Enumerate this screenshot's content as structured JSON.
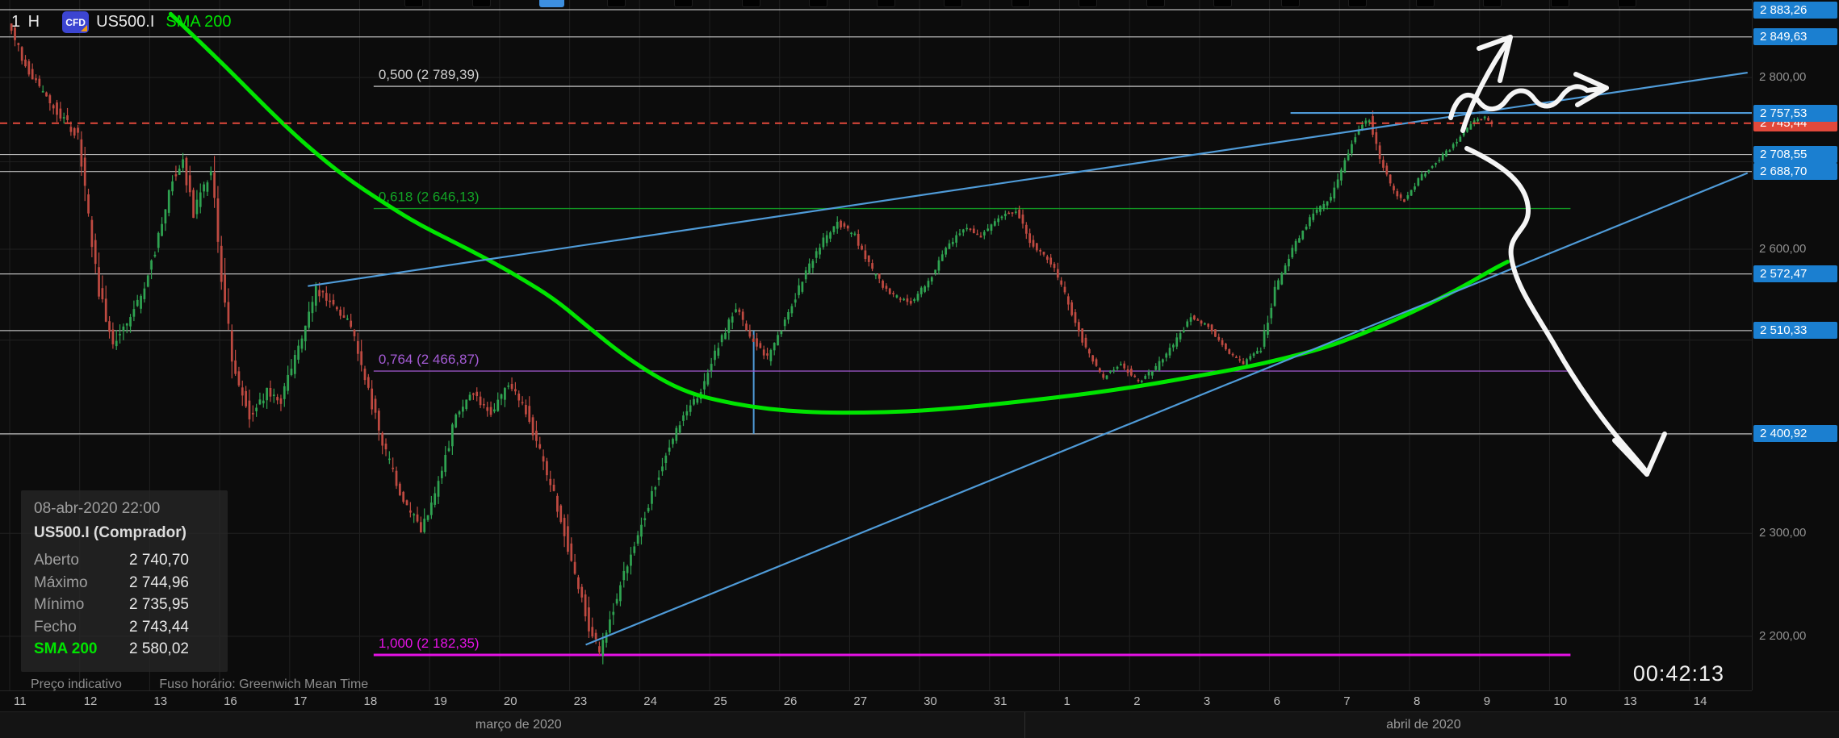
{
  "header": {
    "timeframe": "1 H",
    "instrument_badge": "CFD",
    "symbol": "US500.I",
    "indicator_label": "SMA 200"
  },
  "top_strip": {
    "segments": 19,
    "active_segment": 2
  },
  "tooltip": {
    "datetime": "08-abr-2020 22:00",
    "title": "US500.I (Comprador)",
    "rows": [
      {
        "label": "Aberto",
        "value": "2 740,70"
      },
      {
        "label": "Máximo",
        "value": "2 744,96"
      },
      {
        "label": "Mínimo",
        "value": "2 735,95"
      },
      {
        "label": "Fecho",
        "value": "2 743,44"
      },
      {
        "label": "SMA 200",
        "value": "2 580,02"
      }
    ]
  },
  "footer": {
    "price_note": "Preço indicativo",
    "timezone_note": "Fuso horário: Greenwich Mean Time"
  },
  "countdown_timer": "00:42:13",
  "x_axis": {
    "day_labels": [
      "11",
      "12",
      "13",
      "16",
      "17",
      "18",
      "19",
      "20",
      "23",
      "24",
      "25",
      "26",
      "27",
      "30",
      "31",
      "1",
      "2",
      "3",
      "6",
      "7",
      "8",
      "9",
      "10",
      "13",
      "14"
    ],
    "months": [
      {
        "label": "março de 2020",
        "day_center": 7.27
      },
      {
        "label": "abril de 2020",
        "day_center": 20.2
      }
    ],
    "month_boundary_day": 14.5
  },
  "y_axis": {
    "grid_prices": [
      2800,
      2700,
      2600,
      2500,
      2400,
      2300,
      2200
    ],
    "visible_labels": [
      {
        "price": 2800,
        "text": "2 800,00"
      },
      {
        "price": 2600,
        "text": "2 600,00"
      },
      {
        "price": 2300,
        "text": "2 300,00"
      },
      {
        "price": 2200,
        "text": "2 200,00"
      }
    ]
  },
  "chart_data": {
    "type": "candlestick",
    "symbol": "US500.I",
    "interval": "1H",
    "price_scale": "logarithmic",
    "visible_price_range": [
      2160,
      2890
    ],
    "colors": {
      "up": "#2fa351",
      "down": "#bf4a41",
      "sma": "#00e400",
      "trendline": "#4f9bd8",
      "current_price": "#e2493b"
    },
    "current_price": 2745.44,
    "last_candle": {
      "datetime": "08-abr-2020 22:00",
      "open": 2740.7,
      "high": 2744.96,
      "low": 2735.95,
      "close": 2743.44,
      "sma200": 2580.02
    },
    "horizontal_levels": [
      {
        "text": "2 883,26",
        "price": 2883.26,
        "style": "white-line",
        "badge": "blue"
      },
      {
        "text": "2 849,63",
        "price": 2849.63,
        "style": "white-line",
        "badge": "blue"
      },
      {
        "text": "2 757,53",
        "price": 2757.53,
        "style": "blue-line",
        "badge": "blue",
        "from_day": 18.3
      },
      {
        "text": "2 745,44",
        "price": 2745.44,
        "style": "red-dashed",
        "badge": "red"
      },
      {
        "text": "2 708,55",
        "price": 2708.55,
        "style": "white-line",
        "badge": "blue"
      },
      {
        "text": "2 688,70",
        "price": 2688.7,
        "style": "white-line",
        "badge": "blue"
      },
      {
        "text": "2 572,47",
        "price": 2572.47,
        "style": "white-line",
        "badge": "blue"
      },
      {
        "text": "2 510,33",
        "price": 2510.33,
        "style": "white-line",
        "badge": "blue"
      },
      {
        "text": "2 400,92",
        "price": 2400.92,
        "style": "white-line",
        "badge": "blue"
      }
    ],
    "fib_levels": [
      {
        "label": "0,500 (2 789,39)",
        "ratio": 0.5,
        "price": 2789.39,
        "color": "#cfcfcf"
      },
      {
        "label": "0,618 (2 646,13)",
        "ratio": 0.618,
        "price": 2646.13,
        "color": "#12a325"
      },
      {
        "label": "0,764 (2 466,87)",
        "ratio": 0.764,
        "price": 2466.87,
        "color": "#a55bd6"
      },
      {
        "label": "1,000 (2 182,35)",
        "ratio": 1.0,
        "price": 2182.35,
        "color": "#e512e5"
      }
    ],
    "fib_from_day": 5.2,
    "fib_to_day": 22.3,
    "trendlines": [
      {
        "from_day": 4.26,
        "from_price": 2559,
        "to_day": 24.83,
        "to_price": 2806
      },
      {
        "from_day": 8.23,
        "from_price": 2192,
        "to_day": 24.83,
        "to_price": 2687
      }
    ],
    "vertical_connector": {
      "day": 10.63,
      "from_price": 2510.33,
      "to_price": 2400.92
    },
    "candles_per_day": 20,
    "data_end_day": 21.2,
    "price_path_anchors": [
      [
        0.0,
        2868
      ],
      [
        0.25,
        2815
      ],
      [
        0.5,
        2780
      ],
      [
        0.75,
        2755
      ],
      [
        1.0,
        2730
      ],
      [
        1.15,
        2640
      ],
      [
        1.3,
        2555
      ],
      [
        1.5,
        2495
      ],
      [
        1.7,
        2520
      ],
      [
        1.9,
        2545
      ],
      [
        2.1,
        2600
      ],
      [
        2.35,
        2680
      ],
      [
        2.5,
        2700
      ],
      [
        2.65,
        2640
      ],
      [
        2.9,
        2690
      ],
      [
        3.05,
        2570
      ],
      [
        3.2,
        2480
      ],
      [
        3.45,
        2420
      ],
      [
        3.7,
        2445
      ],
      [
        3.9,
        2435
      ],
      [
        4.15,
        2490
      ],
      [
        4.4,
        2555
      ],
      [
        4.65,
        2540
      ],
      [
        4.9,
        2515
      ],
      [
        5.15,
        2445
      ],
      [
        5.4,
        2380
      ],
      [
        5.65,
        2330
      ],
      [
        5.9,
        2305
      ],
      [
        6.15,
        2350
      ],
      [
        6.4,
        2420
      ],
      [
        6.65,
        2445
      ],
      [
        6.9,
        2420
      ],
      [
        7.15,
        2455
      ],
      [
        7.4,
        2425
      ],
      [
        7.65,
        2370
      ],
      [
        7.9,
        2315
      ],
      [
        8.1,
        2260
      ],
      [
        8.3,
        2210
      ],
      [
        8.45,
        2186
      ],
      [
        8.6,
        2215
      ],
      [
        8.8,
        2260
      ],
      [
        8.95,
        2290
      ],
      [
        9.2,
        2340
      ],
      [
        9.45,
        2390
      ],
      [
        9.7,
        2425
      ],
      [
        9.9,
        2445
      ],
      [
        10.15,
        2495
      ],
      [
        10.4,
        2535
      ],
      [
        10.6,
        2505
      ],
      [
        10.85,
        2480
      ],
      [
        11.1,
        2520
      ],
      [
        11.35,
        2565
      ],
      [
        11.6,
        2605
      ],
      [
        11.85,
        2630
      ],
      [
        12.1,
        2615
      ],
      [
        12.35,
        2575
      ],
      [
        12.6,
        2550
      ],
      [
        12.9,
        2540
      ],
      [
        13.15,
        2565
      ],
      [
        13.4,
        2600
      ],
      [
        13.65,
        2625
      ],
      [
        13.9,
        2615
      ],
      [
        14.15,
        2635
      ],
      [
        14.4,
        2645
      ],
      [
        14.6,
        2610
      ],
      [
        14.9,
        2585
      ],
      [
        15.15,
        2540
      ],
      [
        15.4,
        2490
      ],
      [
        15.65,
        2460
      ],
      [
        15.9,
        2475
      ],
      [
        16.15,
        2455
      ],
      [
        16.4,
        2470
      ],
      [
        16.65,
        2495
      ],
      [
        16.9,
        2525
      ],
      [
        17.15,
        2515
      ],
      [
        17.4,
        2490
      ],
      [
        17.65,
        2475
      ],
      [
        17.9,
        2490
      ],
      [
        18.1,
        2555
      ],
      [
        18.35,
        2600
      ],
      [
        18.6,
        2635
      ],
      [
        18.9,
        2660
      ],
      [
        19.1,
        2700
      ],
      [
        19.3,
        2740
      ],
      [
        19.45,
        2750
      ],
      [
        19.6,
        2705
      ],
      [
        19.8,
        2665
      ],
      [
        19.95,
        2655
      ],
      [
        20.15,
        2680
      ],
      [
        20.4,
        2700
      ],
      [
        20.6,
        2715
      ],
      [
        20.8,
        2735
      ],
      [
        20.95,
        2748
      ],
      [
        21.1,
        2752
      ],
      [
        21.2,
        2743
      ]
    ],
    "volatility_anchors": [
      [
        0,
        26
      ],
      [
        1,
        40
      ],
      [
        2,
        34
      ],
      [
        3,
        40
      ],
      [
        4,
        30
      ],
      [
        5,
        32
      ],
      [
        6,
        28
      ],
      [
        7,
        28
      ],
      [
        8,
        30
      ],
      [
        9,
        26
      ],
      [
        10,
        22
      ],
      [
        11,
        20
      ],
      [
        12,
        18
      ],
      [
        13,
        16
      ],
      [
        14,
        16
      ],
      [
        15,
        18
      ],
      [
        16,
        14
      ],
      [
        17,
        12
      ],
      [
        18,
        13
      ],
      [
        19,
        15
      ],
      [
        20,
        11
      ],
      [
        21,
        9
      ],
      [
        22,
        9
      ]
    ],
    "sma200_points": [
      [
        2.3,
        2878
      ],
      [
        2.7,
        2845
      ],
      [
        3.1,
        2812
      ],
      [
        3.5,
        2778
      ],
      [
        3.9,
        2745
      ],
      [
        4.3,
        2715
      ],
      [
        4.8,
        2682
      ],
      [
        5.3,
        2655
      ],
      [
        5.8,
        2630
      ],
      [
        6.3,
        2610
      ],
      [
        6.8,
        2590
      ],
      [
        7.3,
        2568
      ],
      [
        7.8,
        2544
      ],
      [
        8.3,
        2512
      ],
      [
        8.8,
        2482
      ],
      [
        9.3,
        2458
      ],
      [
        9.7,
        2444
      ],
      [
        10.1,
        2436
      ],
      [
        10.6,
        2429
      ],
      [
        11.1,
        2425
      ],
      [
        11.6,
        2423
      ],
      [
        12.2,
        2423
      ],
      [
        12.8,
        2424
      ],
      [
        13.4,
        2427
      ],
      [
        14.0,
        2431
      ],
      [
        14.6,
        2436
      ],
      [
        15.2,
        2441
      ],
      [
        15.8,
        2447
      ],
      [
        16.4,
        2454
      ],
      [
        17.0,
        2462
      ],
      [
        17.6,
        2470
      ],
      [
        18.2,
        2480
      ],
      [
        18.8,
        2492
      ],
      [
        19.3,
        2506
      ],
      [
        19.8,
        2522
      ],
      [
        20.3,
        2540
      ],
      [
        20.8,
        2560
      ],
      [
        21.2,
        2578
      ],
      [
        21.4,
        2586
      ]
    ],
    "annotations": [
      {
        "name": "up-right-arrow"
      },
      {
        "name": "squiggle-right-arrow"
      },
      {
        "name": "long-down-arrow"
      }
    ]
  }
}
